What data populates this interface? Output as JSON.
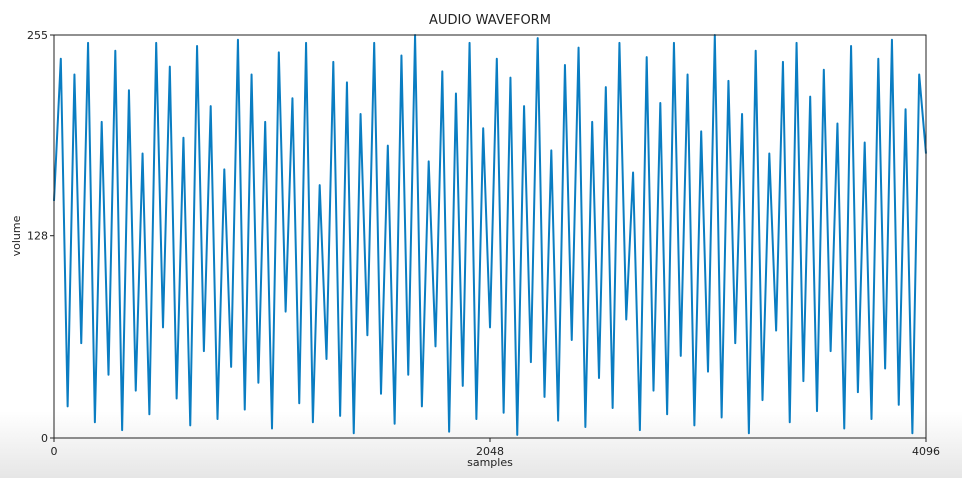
{
  "chart_data": {
    "type": "line",
    "title": "AUDIO WAVEFORM",
    "x_label": "samples",
    "y_label": "volume",
    "color": "#0a7dc2",
    "x": [
      0,
      32,
      64,
      96,
      128,
      160,
      192,
      224,
      256,
      288,
      320,
      352,
      384,
      416,
      448,
      480,
      512,
      544,
      576,
      608,
      640,
      672,
      704,
      736,
      768,
      800,
      832,
      864,
      896,
      928,
      960,
      992,
      1024,
      1056,
      1088,
      1120,
      1152,
      1184,
      1216,
      1248,
      1280,
      1312,
      1344,
      1376,
      1408,
      1440,
      1472,
      1504,
      1536,
      1568,
      1600,
      1632,
      1664,
      1696,
      1728,
      1760,
      1792,
      1824,
      1856,
      1888,
      1920,
      1952,
      1984,
      2016,
      2048,
      2080,
      2112,
      2144,
      2176,
      2208,
      2240,
      2272,
      2304,
      2336,
      2368,
      2400,
      2432,
      2464,
      2496,
      2528,
      2560,
      2592,
      2624,
      2656,
      2688,
      2720,
      2752,
      2784,
      2816,
      2848,
      2880,
      2912,
      2944,
      2976,
      3008,
      3040,
      3072,
      3104,
      3136,
      3168,
      3200,
      3232,
      3264,
      3296,
      3328,
      3360,
      3392,
      3424,
      3456,
      3488,
      3520,
      3552,
      3584,
      3616,
      3648,
      3680,
      3712,
      3744,
      3776,
      3808,
      3840,
      3872,
      3904,
      3936,
      3968,
      4000,
      4032,
      4064,
      4096
    ],
    "values": [
      150,
      240,
      20,
      230,
      60,
      250,
      10,
      200,
      40,
      245,
      5,
      220,
      30,
      180,
      15,
      250,
      70,
      235,
      25,
      190,
      8,
      248,
      55,
      210,
      12,
      170,
      45,
      252,
      18,
      230,
      35,
      200,
      6,
      244,
      80,
      215,
      22,
      250,
      10,
      160,
      50,
      238,
      14,
      225,
      3,
      205,
      65,
      250,
      28,
      185,
      9,
      242,
      40,
      255,
      20,
      175,
      58,
      232,
      4,
      218,
      33,
      250,
      12,
      196,
      70,
      240,
      16,
      228,
      2,
      210,
      48,
      253,
      26,
      182,
      11,
      236,
      62,
      247,
      7,
      200,
      38,
      222,
      19,
      250,
      75,
      168,
      5,
      241,
      30,
      212,
      15,
      250,
      52,
      230,
      8,
      194,
      42,
      255,
      13,
      226,
      60,
      205,
      3,
      245,
      24,
      180,
      68,
      238,
      10,
      250,
      36,
      216,
      17,
      233,
      55,
      199,
      6,
      248,
      29,
      187,
      12,
      240,
      44,
      252,
      21,
      208,
      3,
      230,
      180
    ],
    "xlim": [
      0,
      4096
    ],
    "ylim": [
      0,
      255
    ],
    "xticks": [
      0,
      2048,
      4096
    ],
    "yticks": [
      0,
      128,
      255
    ]
  }
}
